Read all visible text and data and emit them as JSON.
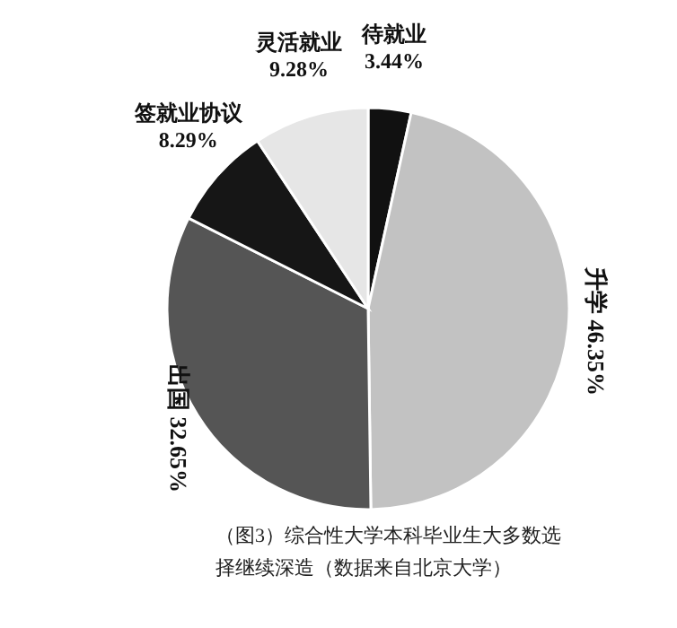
{
  "chart_data": {
    "type": "pie",
    "categories": [
      "待就业",
      "升学",
      "出国",
      "签就业协议",
      "灵活就业"
    ],
    "values": [
      3.44,
      46.35,
      32.65,
      8.29,
      9.28
    ],
    "colors": [
      "#111111",
      "#c2c2c2",
      "#555555",
      "#161616",
      "#e6e6e6"
    ],
    "value_labels": [
      "3.44%",
      "46.35%",
      "32.65%",
      "8.29%",
      "9.28%"
    ],
    "annotations": [
      "（图3）综合性大学本科毕业生大多数选择继续深造（数据来自北京大学）"
    ]
  }
}
